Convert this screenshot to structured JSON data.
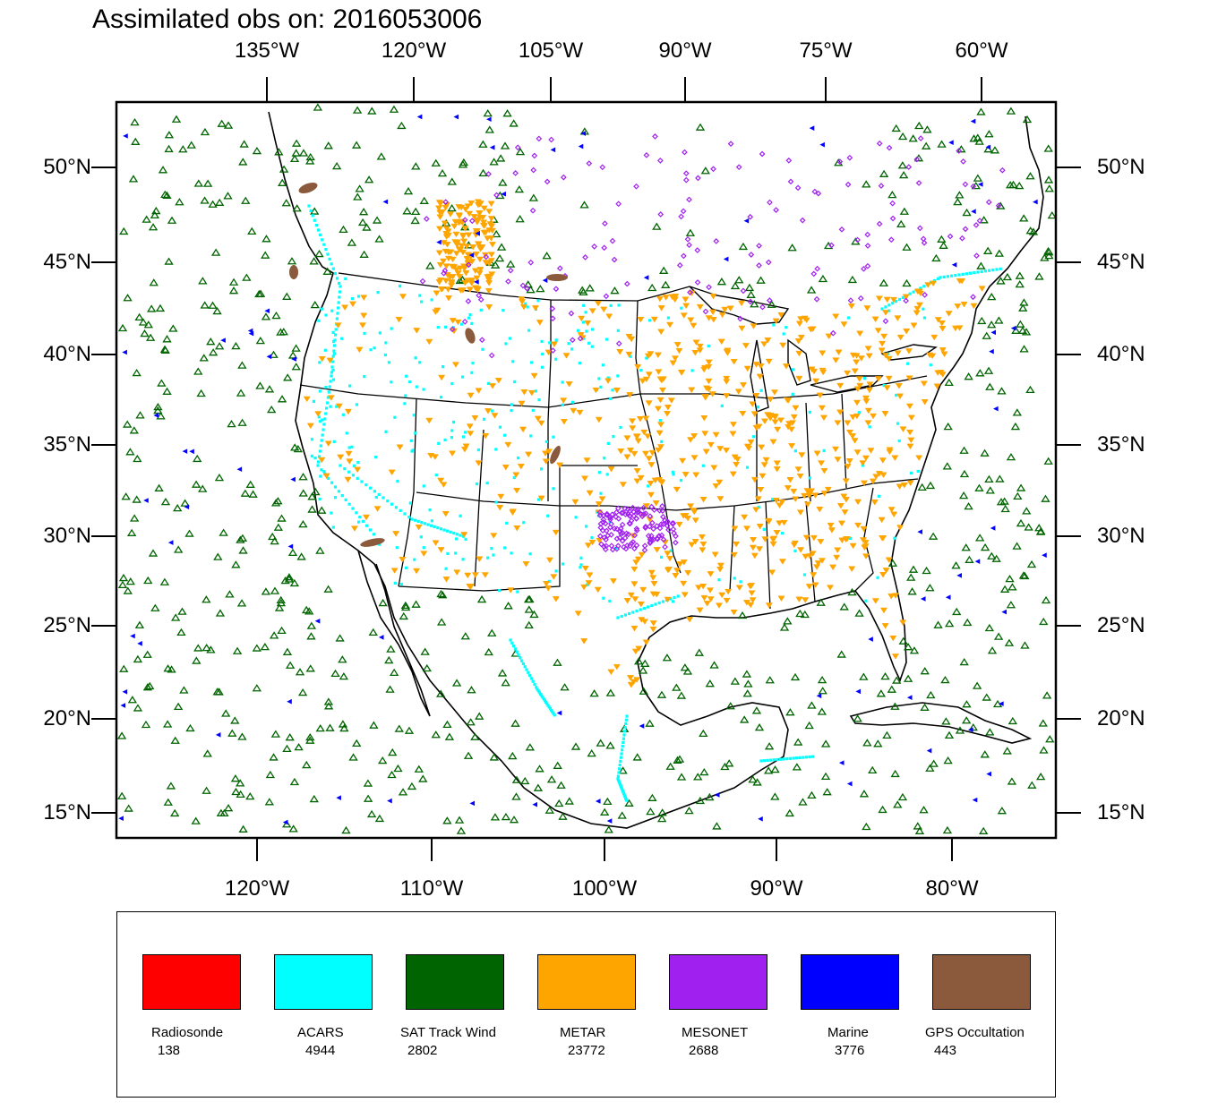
{
  "title": "Assimilated obs on: 2016053006",
  "axes": {
    "top_lon_labels": [
      "135°W",
      "120°W",
      "105°W",
      "90°W",
      "75°W",
      "60°W"
    ],
    "bottom_lon_labels": [
      "120°W",
      "110°W",
      "100°W",
      "90°W",
      "80°W"
    ],
    "lat_labels": [
      "50°N",
      "45°N",
      "40°N",
      "35°N",
      "30°N",
      "25°N",
      "20°N",
      "15°N"
    ]
  },
  "legend": {
    "items": [
      {
        "name": "Radiosonde",
        "count": "138",
        "color": "#ff0000"
      },
      {
        "name": "ACARS",
        "count": "4944",
        "color": "#00ffff"
      },
      {
        "name": "SAT Track Wind",
        "count": "2802",
        "color": "#006400"
      },
      {
        "name": "METAR",
        "count": "23772",
        "color": "#ffa500"
      },
      {
        "name": "MESONET",
        "count": "2688",
        "color": "#a020f0"
      },
      {
        "name": "Marine",
        "count": "3776",
        "color": "#0000ff"
      },
      {
        "name": "GPS Occultation",
        "count": "443",
        "color": "#8b5a3c"
      }
    ]
  },
  "colors": {
    "acars": "#00ffff",
    "sat_track_wind": "#006400",
    "metar": "#ffa500",
    "mesonet": "#a020f0",
    "marine": "#0000ff",
    "gps": "#8b5a3c"
  }
}
